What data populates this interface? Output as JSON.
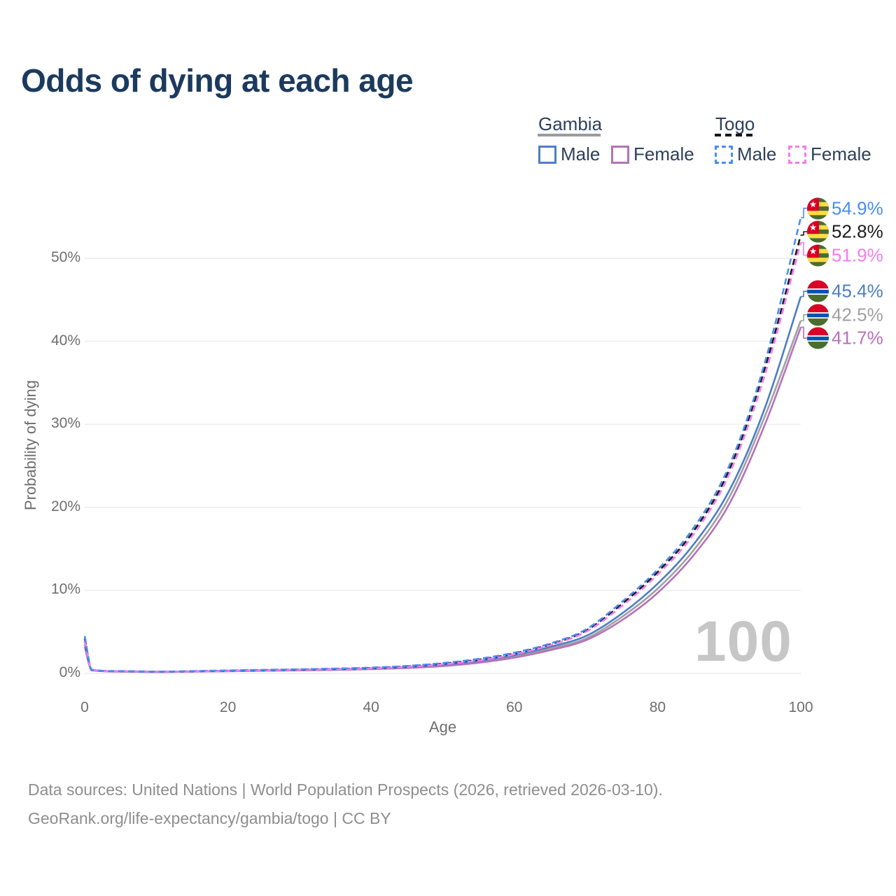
{
  "title": "Odds of dying at each age",
  "watermark_age": "100",
  "legend": {
    "groups": [
      {
        "name": "Gambia",
        "line_style": "solid",
        "underline_color": "#9a9aa0",
        "entries": [
          {
            "label": "Male",
            "color": "#4d7ec3"
          },
          {
            "label": "Female",
            "color": "#b671bb"
          }
        ]
      },
      {
        "name": "Togo",
        "line_style": "dashed",
        "underline_color": "#161616",
        "entries": [
          {
            "label": "Male",
            "color": "#4a8cf5"
          },
          {
            "label": "Female",
            "color": "#f57bef"
          }
        ]
      }
    ]
  },
  "axes": {
    "x_title": "Age",
    "y_title": "Probability of dying"
  },
  "footer": {
    "line1": "Data sources: United Nations | World Population Prospects (2026, retrieved 2026-03-10).",
    "line2": "GeoRank.org/life-expectancy/gambia/togo | CC BY"
  },
  "chart_data": {
    "type": "line",
    "title": "Odds of dying at each age",
    "xlabel": "Age",
    "ylabel": "Probability of dying",
    "xlim": [
      0,
      100
    ],
    "ylim_percent": [
      0,
      57.5
    ],
    "x_ticks": [
      0,
      20,
      40,
      60,
      80,
      100
    ],
    "y_tick_values": [
      0,
      10,
      20,
      30,
      40,
      50
    ],
    "y_tick_labels": [
      "0%",
      "10%",
      "20%",
      "30%",
      "40%",
      "50%"
    ],
    "grid": "horizontal",
    "legend_position": "top-right",
    "ages": [
      0,
      1,
      5,
      10,
      15,
      20,
      25,
      30,
      35,
      40,
      45,
      50,
      55,
      60,
      65,
      70,
      75,
      80,
      85,
      90,
      95,
      100
    ],
    "series": [
      {
        "name": "Togo Male",
        "country": "Togo",
        "sex": "Male",
        "flag": "togo",
        "line_style": "dashed",
        "color": "#4a8cf5",
        "end_label": "54.9%",
        "end_value": 54.9,
        "values": [
          4.5,
          0.45,
          0.28,
          0.22,
          0.28,
          0.36,
          0.43,
          0.5,
          0.58,
          0.7,
          0.9,
          1.25,
          1.75,
          2.5,
          3.6,
          5.3,
          8.6,
          12.5,
          17.5,
          25.0,
          37.5,
          54.9
        ]
      },
      {
        "name": "Togo All",
        "country": "Togo",
        "sex": "All",
        "flag": "togo",
        "line_style": "dashed",
        "color": "#1c1c1c",
        "end_label": "52.8%",
        "end_value": 52.8,
        "values": [
          4.2,
          0.43,
          0.27,
          0.21,
          0.26,
          0.33,
          0.4,
          0.46,
          0.54,
          0.65,
          0.84,
          1.17,
          1.65,
          2.4,
          3.5,
          5.15,
          8.35,
          12.2,
          17.1,
          24.5,
          36.8,
          52.8
        ]
      },
      {
        "name": "Togo Female",
        "country": "Togo",
        "sex": "Female",
        "flag": "togo",
        "line_style": "dashed",
        "color": "#f57bef",
        "end_label": "51.9%",
        "end_value": 51.9,
        "values": [
          3.9,
          0.41,
          0.26,
          0.2,
          0.24,
          0.3,
          0.36,
          0.43,
          0.5,
          0.6,
          0.78,
          1.1,
          1.55,
          2.3,
          3.4,
          5.0,
          8.1,
          11.9,
          16.7,
          24.0,
          36.0,
          51.9
        ]
      },
      {
        "name": "Gambia Male",
        "country": "Gambia",
        "sex": "Male",
        "flag": "gambia",
        "line_style": "solid",
        "color": "#4d7ec3",
        "end_label": "45.4%",
        "end_value": 45.4,
        "values": [
          3.8,
          0.4,
          0.25,
          0.19,
          0.24,
          0.3,
          0.37,
          0.43,
          0.5,
          0.6,
          0.77,
          1.05,
          1.5,
          2.2,
          3.2,
          4.5,
          7.2,
          10.8,
          15.5,
          22.0,
          32.0,
          45.4
        ]
      },
      {
        "name": "Gambia All",
        "country": "Gambia",
        "sex": "All",
        "flag": "gambia",
        "line_style": "solid",
        "color": "#a0a0a0",
        "end_label": "42.5%",
        "end_value": 42.5,
        "values": [
          3.5,
          0.38,
          0.24,
          0.18,
          0.22,
          0.28,
          0.33,
          0.39,
          0.46,
          0.55,
          0.7,
          0.95,
          1.38,
          2.05,
          3.0,
          4.2,
          6.8,
          10.2,
          14.8,
          21.2,
          31.0,
          42.5
        ]
      },
      {
        "name": "Gambia Female",
        "country": "Gambia",
        "sex": "Female",
        "flag": "gambia",
        "line_style": "solid",
        "color": "#b671bb",
        "end_label": "41.7%",
        "end_value": 41.7,
        "values": [
          3.2,
          0.36,
          0.22,
          0.17,
          0.21,
          0.26,
          0.31,
          0.36,
          0.42,
          0.51,
          0.65,
          0.88,
          1.28,
          1.9,
          2.8,
          4.0,
          6.4,
          9.7,
          14.2,
          20.4,
          30.0,
          41.7
        ]
      }
    ]
  }
}
